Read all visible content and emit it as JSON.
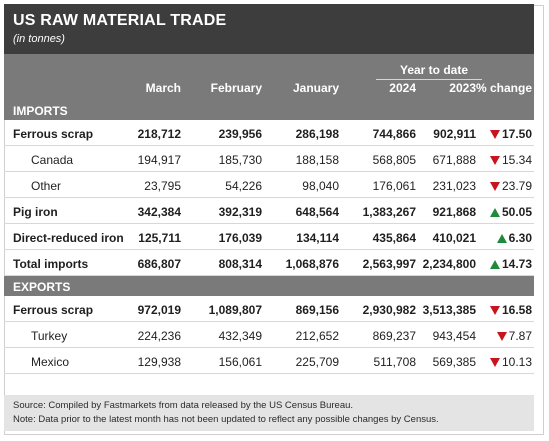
{
  "title": "US RAW MATERIAL TRADE",
  "subtitle": "(in tonnes)",
  "ytd_label": "Year to date",
  "columns": [
    "March",
    "February",
    "January",
    "2024",
    "2023",
    "% change"
  ],
  "colors": {
    "down": "#c8141e",
    "up": "#1e8a3c",
    "header": "#7a7a7a",
    "title_bg": "#3d3d3d"
  },
  "imports": {
    "label": "IMPORTS",
    "rows": [
      {
        "label": "Ferrous scrap",
        "march": "218,712",
        "february": "239,956",
        "january": "286,198",
        "ytd_2024": "744,866",
        "ytd_2023": "902,911",
        "change": "17.50",
        "direction": "down",
        "style": "bold"
      },
      {
        "label": "Canada",
        "march": "194,917",
        "february": "185,730",
        "january": "188,158",
        "ytd_2024": "568,805",
        "ytd_2023": "671,888",
        "change": "15.34",
        "direction": "down",
        "style": "sub"
      },
      {
        "label": "Other",
        "march": "23,795",
        "february": "54,226",
        "january": "98,040",
        "ytd_2024": "176,061",
        "ytd_2023": "231,023",
        "change": "23.79",
        "direction": "down",
        "style": "sub"
      },
      {
        "label": "Pig iron",
        "march": "342,384",
        "february": "392,319",
        "january": "648,564",
        "ytd_2024": "1,383,267",
        "ytd_2023": "921,868",
        "change": "50.05",
        "direction": "up",
        "style": "bold"
      },
      {
        "label": "Direct-reduced iron",
        "march": "125,711",
        "february": "176,039",
        "january": "134,114",
        "ytd_2024": "435,864",
        "ytd_2023": "410,021",
        "change": "6.30",
        "direction": "up",
        "style": "bold"
      },
      {
        "label": "Total imports",
        "march": "686,807",
        "february": "808,314",
        "january": "1,068,876",
        "ytd_2024": "2,563,997",
        "ytd_2023": "2,234,800",
        "change": "14.73",
        "direction": "up",
        "style": "bold"
      }
    ]
  },
  "exports": {
    "label": "EXPORTS",
    "rows": [
      {
        "label": "Ferrous scrap",
        "march": "972,019",
        "february": "1,089,807",
        "january": "869,156",
        "ytd_2024": "2,930,982",
        "ytd_2023": "3,513,385",
        "change": "16.58",
        "direction": "down",
        "style": "bold"
      },
      {
        "label": "Turkey",
        "march": "224,236",
        "february": "432,349",
        "january": "212,652",
        "ytd_2024": "869,237",
        "ytd_2023": "943,454",
        "change": "7.87",
        "direction": "down",
        "style": "sub"
      },
      {
        "label": "Mexico",
        "march": "129,938",
        "february": "156,061",
        "january": "225,709",
        "ytd_2024": "511,708",
        "ytd_2023": "569,385",
        "change": "10.13",
        "direction": "down",
        "style": "sub"
      }
    ]
  },
  "footnotes": [
    "Source: Compiled by Fastmarkets from data released by the US Census Bureau.",
    "Note: Data prior to the latest month has not been updated to reflect any possible changes by Census."
  ]
}
